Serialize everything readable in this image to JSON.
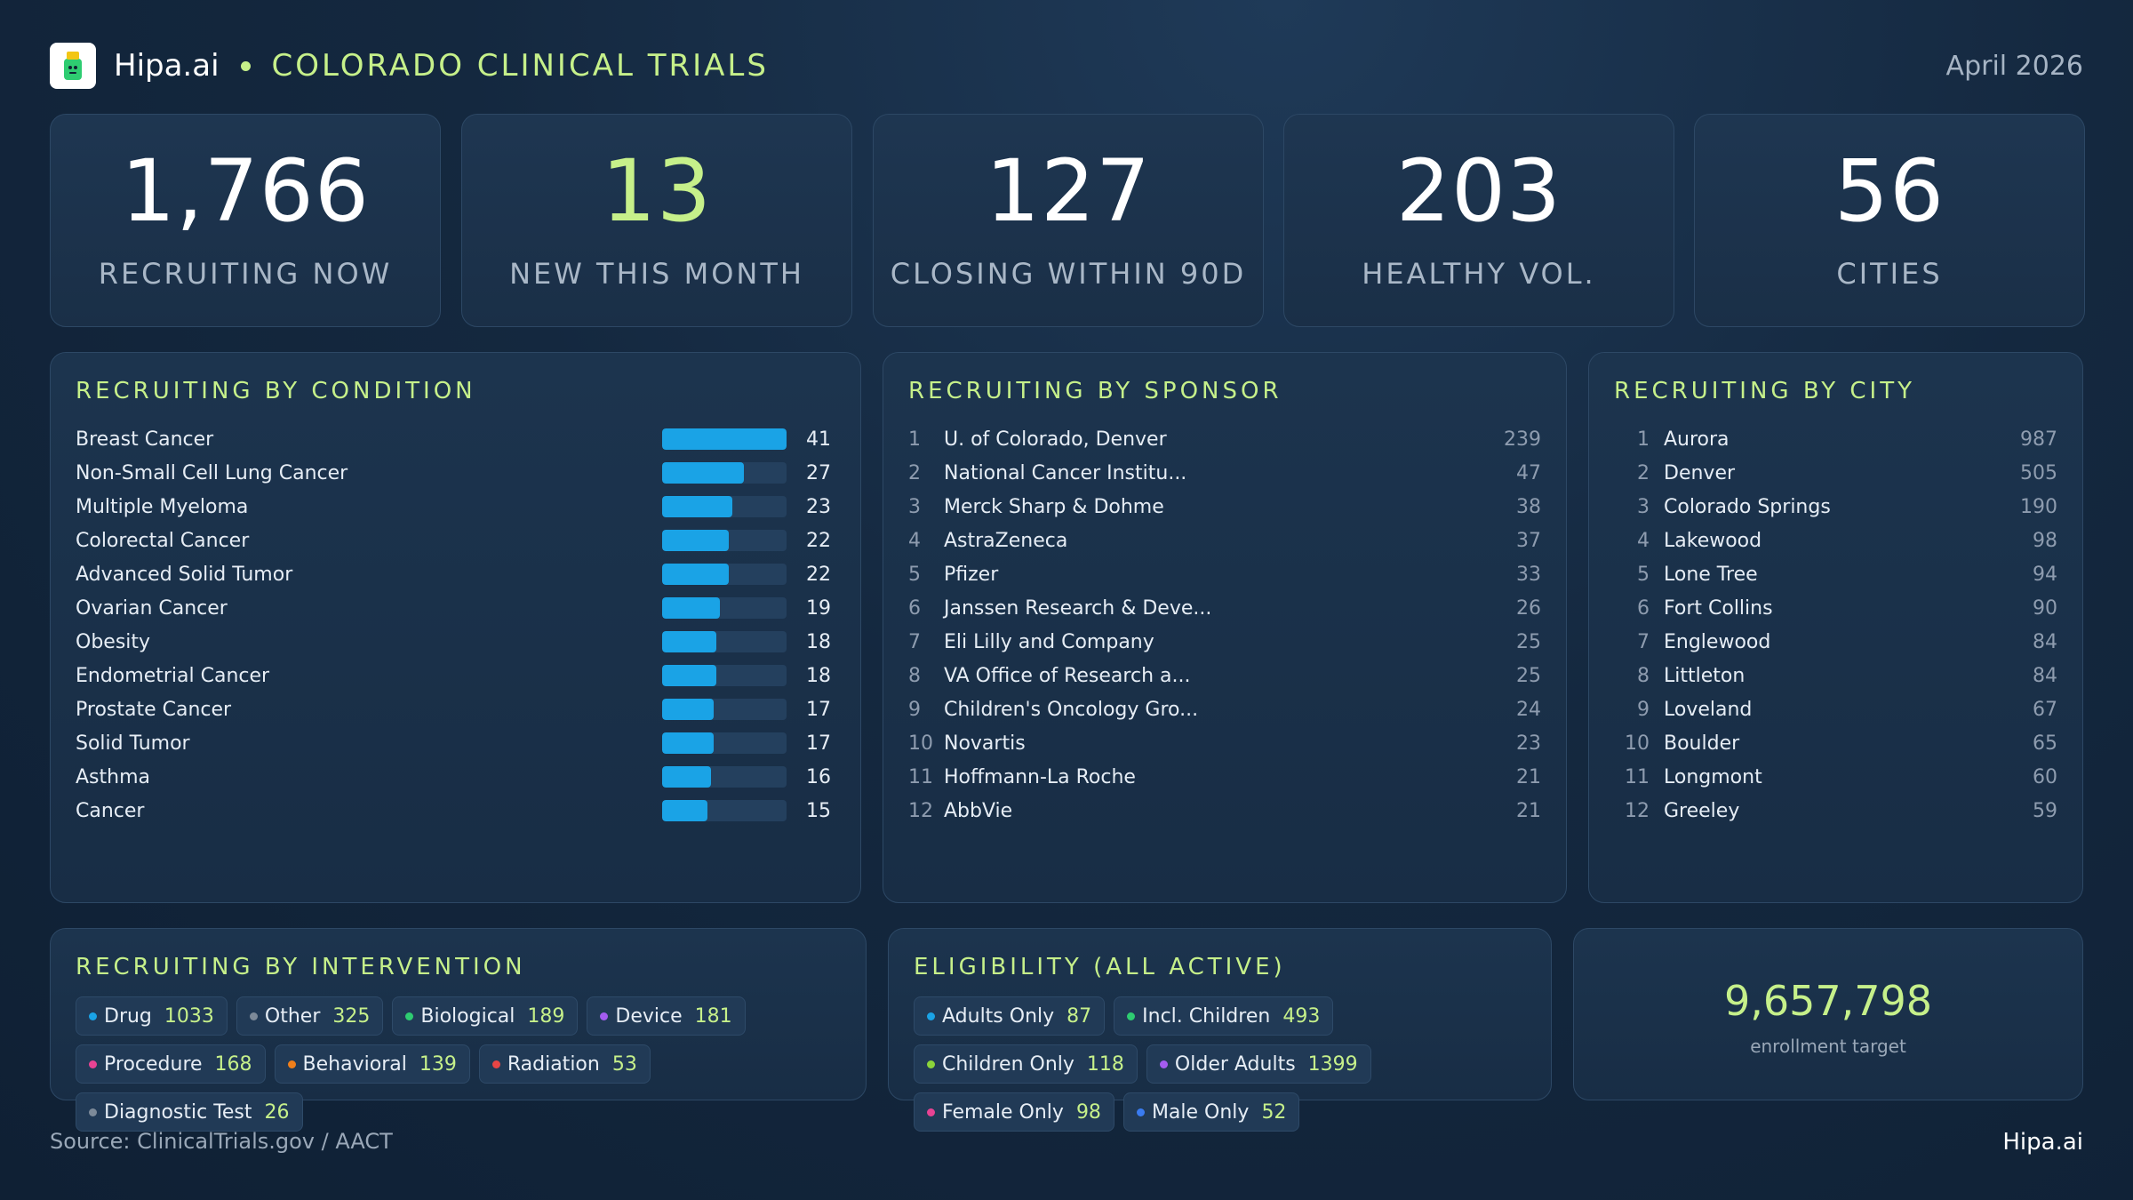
{
  "header": {
    "brand": "Hipa.ai",
    "title": "COLORADO CLINICAL TRIALS",
    "date": "April 2026"
  },
  "kpis": [
    {
      "value": "1,766",
      "label": "RECRUITING NOW"
    },
    {
      "value": "13",
      "label": "NEW THIS MONTH"
    },
    {
      "value": "127",
      "label": "CLOSING WITHIN 90D"
    },
    {
      "value": "203",
      "label": "HEALTHY VOL."
    },
    {
      "value": "56",
      "label": "CITIES"
    }
  ],
  "condition": {
    "title": "RECRUITING BY CONDITION",
    "items": [
      {
        "name": "Breast Cancer",
        "value": 41
      },
      {
        "name": "Non-Small Cell Lung Cancer",
        "value": 27
      },
      {
        "name": "Multiple Myeloma",
        "value": 23
      },
      {
        "name": "Colorectal Cancer",
        "value": 22
      },
      {
        "name": "Advanced Solid Tumor",
        "value": 22
      },
      {
        "name": "Ovarian Cancer",
        "value": 19
      },
      {
        "name": "Obesity",
        "value": 18
      },
      {
        "name": "Endometrial Cancer",
        "value": 18
      },
      {
        "name": "Prostate Cancer",
        "value": 17
      },
      {
        "name": "Solid Tumor",
        "value": 17
      },
      {
        "name": "Asthma",
        "value": 16
      },
      {
        "name": "Cancer",
        "value": 15
      }
    ]
  },
  "sponsor": {
    "title": "RECRUITING BY SPONSOR",
    "items": [
      {
        "rank": "1",
        "name": "U. of Colorado, Denver",
        "value": "239"
      },
      {
        "rank": "2",
        "name": "National Cancer Institu...",
        "value": "47"
      },
      {
        "rank": "3",
        "name": "Merck Sharp & Dohme",
        "value": "38"
      },
      {
        "rank": "4",
        "name": "AstraZeneca",
        "value": "37"
      },
      {
        "rank": "5",
        "name": "Pfizer",
        "value": "33"
      },
      {
        "rank": "6",
        "name": "Janssen Research & Deve...",
        "value": "26"
      },
      {
        "rank": "7",
        "name": "Eli Lilly and Company",
        "value": "25"
      },
      {
        "rank": "8",
        "name": "VA Office of Research a...",
        "value": "25"
      },
      {
        "rank": "9",
        "name": "Children's Oncology Gro...",
        "value": "24"
      },
      {
        "rank": "10",
        "name": "Novartis",
        "value": "23"
      },
      {
        "rank": "11",
        "name": "Hoffmann-La Roche",
        "value": "21"
      },
      {
        "rank": "12",
        "name": "AbbVie",
        "value": "21"
      }
    ]
  },
  "city": {
    "title": "RECRUITING BY CITY",
    "items": [
      {
        "rank": "1",
        "name": "Aurora",
        "value": "987"
      },
      {
        "rank": "2",
        "name": "Denver",
        "value": "505"
      },
      {
        "rank": "3",
        "name": "Colorado Springs",
        "value": "190"
      },
      {
        "rank": "4",
        "name": "Lakewood",
        "value": "98"
      },
      {
        "rank": "5",
        "name": "Lone Tree",
        "value": "94"
      },
      {
        "rank": "6",
        "name": "Fort Collins",
        "value": "90"
      },
      {
        "rank": "7",
        "name": "Englewood",
        "value": "84"
      },
      {
        "rank": "8",
        "name": "Littleton",
        "value": "84"
      },
      {
        "rank": "9",
        "name": "Loveland",
        "value": "67"
      },
      {
        "rank": "10",
        "name": "Boulder",
        "value": "65"
      },
      {
        "rank": "11",
        "name": "Longmont",
        "value": "60"
      },
      {
        "rank": "12",
        "name": "Greeley",
        "value": "59"
      }
    ]
  },
  "intervention": {
    "title": "RECRUITING BY INTERVENTION",
    "chips": [
      {
        "label": "Drug",
        "value": "1033",
        "color": "#1aa3e6"
      },
      {
        "label": "Other",
        "value": "325",
        "color": "#7d8a99"
      },
      {
        "label": "Biological",
        "value": "189",
        "color": "#2ecc71"
      },
      {
        "label": "Device",
        "value": "181",
        "color": "#a45cf0"
      },
      {
        "label": "Procedure",
        "value": "168",
        "color": "#e84393"
      },
      {
        "label": "Behavioral",
        "value": "139",
        "color": "#f07f1a"
      },
      {
        "label": "Radiation",
        "value": "53",
        "color": "#e84545"
      },
      {
        "label": "Diagnostic Test",
        "value": "26",
        "color": "#7d8a99"
      }
    ]
  },
  "eligibility": {
    "title": "ELIGIBILITY (ALL ACTIVE)",
    "chips": [
      {
        "label": "Adults Only",
        "value": "87",
        "color": "#1aa3e6"
      },
      {
        "label": "Incl. Children",
        "value": "493",
        "color": "#2ecc71"
      },
      {
        "label": "Children Only",
        "value": "118",
        "color": "#8bd43a"
      },
      {
        "label": "Older Adults",
        "value": "1399",
        "color": "#a45cf0"
      },
      {
        "label": "Female Only",
        "value": "98",
        "color": "#e84393"
      },
      {
        "label": "Male Only",
        "value": "52",
        "color": "#3a7bf0"
      }
    ]
  },
  "enrollment": {
    "value": "9,657,798",
    "label": "enrollment target"
  },
  "footer": {
    "source": "Source: ClinicalTrials.gov / AACT",
    "brand": "Hipa.ai"
  }
}
